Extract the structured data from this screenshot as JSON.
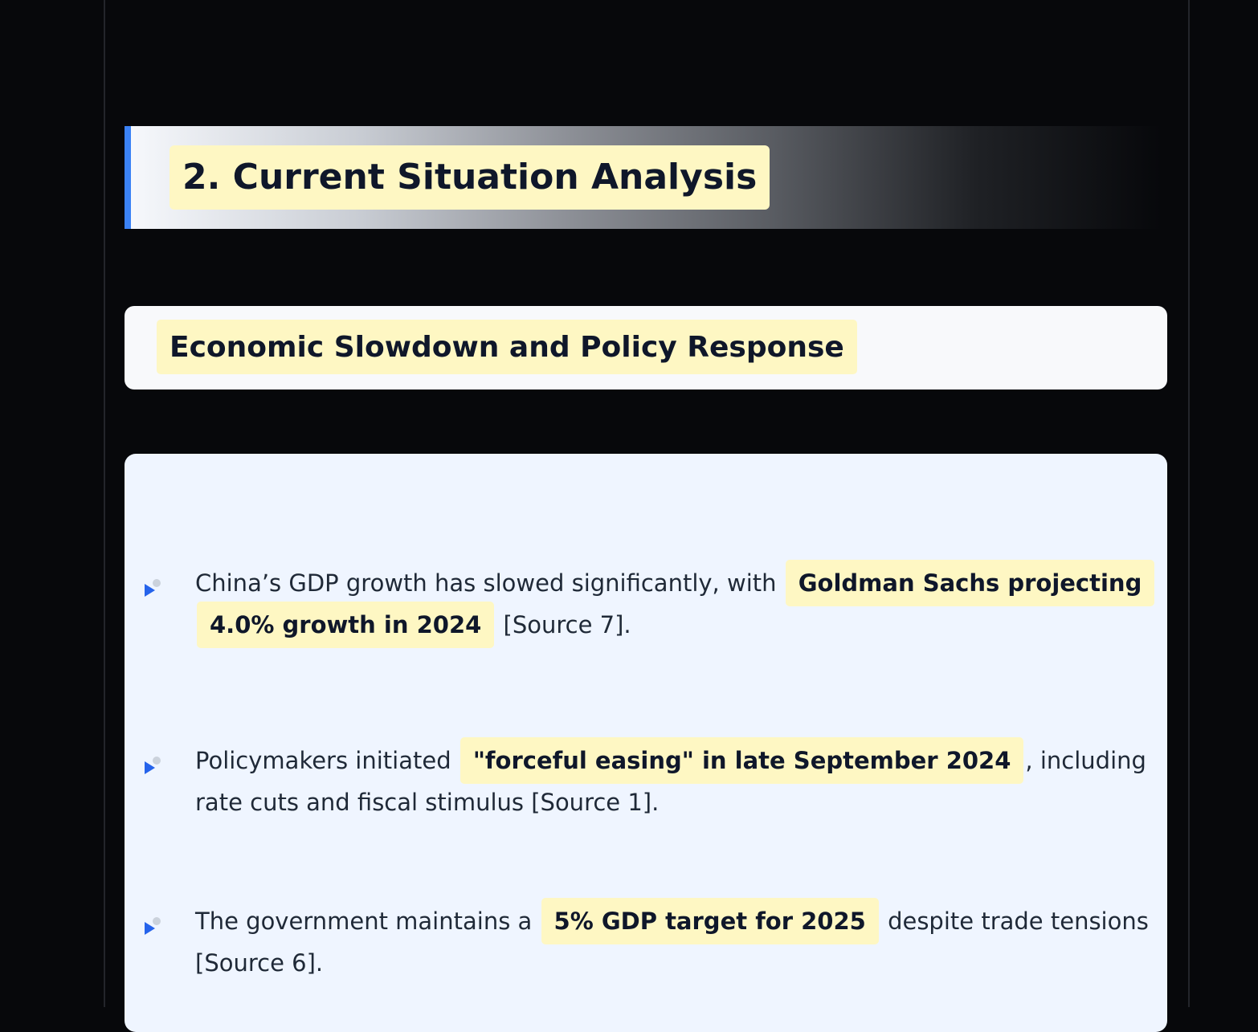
{
  "section": {
    "title": "2. Current Situation Analysis",
    "accent_color": "#3b82f6",
    "highlight_color": "#fef7c3"
  },
  "subsection": {
    "title": "Economic Slowdown and Policy Response"
  },
  "bullets": [
    {
      "icon": "triangle-bullet-icon",
      "pre": "China’s GDP growth has slowed significantly, with",
      "highlight": "Goldman Sachs projecting 4.0% growth in 2024",
      "post": "[Source 7]."
    },
    {
      "icon": "triangle-bullet-icon",
      "pre": "Policymakers initiated",
      "highlight": "\"forceful easing\" in late September 2024",
      "post": ", including rate cuts and fiscal stimulus [Source 1]."
    },
    {
      "icon": "triangle-bullet-icon",
      "pre": "The government maintains a",
      "highlight": "5% GDP target for 2025",
      "post": "despite trade tensions [Source 6]."
    }
  ]
}
